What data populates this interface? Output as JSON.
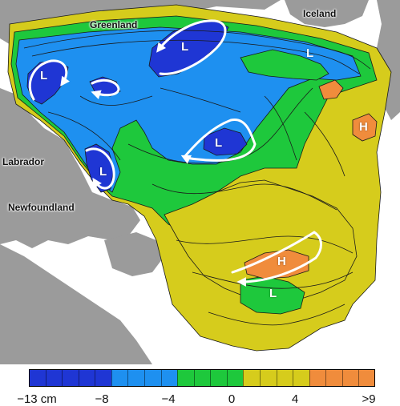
{
  "colors": {
    "land": "#9b9b9b",
    "dark_blue": "#1f36d4",
    "light_blue": "#1e90f0",
    "green": "#1ec83c",
    "yellow": "#d6cc1c",
    "orange": "#f08c3c",
    "contour": "#1a1a1a",
    "arrow": "#ffffff"
  },
  "places": {
    "greenland": "Greenland",
    "iceland": "Iceland",
    "labrador": "Labrador",
    "newfoundland": "Newfoundland"
  },
  "features": [
    {
      "id": "L1",
      "text": "L"
    },
    {
      "id": "L2",
      "text": "L"
    },
    {
      "id": "L3",
      "text": "L"
    },
    {
      "id": "L4",
      "text": "L"
    },
    {
      "id": "L5",
      "text": "L"
    },
    {
      "id": "L6",
      "text": "L"
    },
    {
      "id": "H1",
      "text": "H"
    },
    {
      "id": "H2",
      "text": "H"
    }
  ],
  "legend": {
    "bins": [
      {
        "color": "#1f36d4",
        "count": 5
      },
      {
        "color": "#1e90f0",
        "count": 4
      },
      {
        "color": "#1ec83c",
        "count": 4
      },
      {
        "color": "#d6cc1c",
        "count": 4
      },
      {
        "color": "#f08c3c",
        "count": 4
      }
    ],
    "ticks": [
      {
        "label": "−13  cm"
      },
      {
        "label": "−8"
      },
      {
        "label": "−4"
      },
      {
        "label": "0"
      },
      {
        "label": "4"
      },
      {
        "label": ">9"
      }
    ]
  }
}
